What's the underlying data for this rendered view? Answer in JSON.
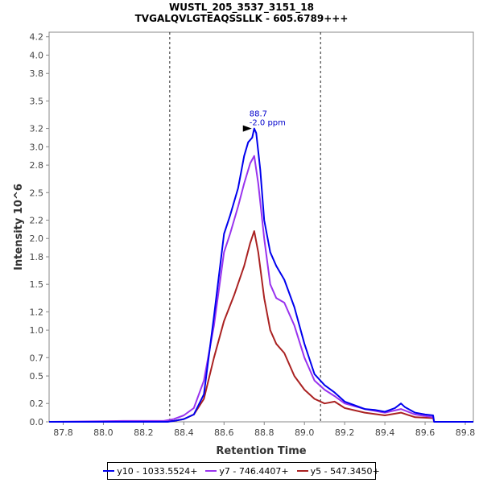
{
  "header": {
    "title": "WUSTL_205_3537_3151_18",
    "subtitle": "TVGALQVLGTEAQSSLLK - 605.6789+++"
  },
  "chart_data": {
    "type": "line",
    "xlabel": "Retention Time",
    "ylabel": "Intensity 10^6",
    "xlim": [
      87.73,
      89.84
    ],
    "ylim": [
      0,
      4.25
    ],
    "x_ticks": [
      {
        "value": 87.8,
        "label": "87.8"
      },
      {
        "value": 88.0,
        "label": "88.0"
      },
      {
        "value": 88.2,
        "label": "88.2"
      },
      {
        "value": 88.4,
        "label": "88.4"
      },
      {
        "value": 88.6,
        "label": "88.6"
      },
      {
        "value": 88.8,
        "label": "88.8"
      },
      {
        "value": 89.0,
        "label": "89.0"
      },
      {
        "value": 89.2,
        "label": "89.2"
      },
      {
        "value": 89.4,
        "label": "89.4"
      },
      {
        "value": 89.6,
        "label": "89.6"
      },
      {
        "value": 89.8,
        "label": "89.8"
      }
    ],
    "y_ticks": [
      {
        "value": 0.0,
        "label": "0.0"
      },
      {
        "value": 0.2,
        "label": "0.2"
      },
      {
        "value": 0.5,
        "label": "0.5"
      },
      {
        "value": 0.7,
        "label": "0.7"
      },
      {
        "value": 1.0,
        "label": "1.0"
      },
      {
        "value": 1.2,
        "label": "1.2"
      },
      {
        "value": 1.5,
        "label": "1.5"
      },
      {
        "value": 1.8,
        "label": "1.8"
      },
      {
        "value": 2.0,
        "label": "2.0"
      },
      {
        "value": 2.2,
        "label": "2.2"
      },
      {
        "value": 2.5,
        "label": "2.5"
      },
      {
        "value": 2.8,
        "label": "2.8"
      },
      {
        "value": 3.0,
        "label": "3.0"
      },
      {
        "value": 3.2,
        "label": "3.2"
      },
      {
        "value": 3.5,
        "label": "3.5"
      },
      {
        "value": 3.8,
        "label": "3.8"
      },
      {
        "value": 4.0,
        "label": "4.0"
      },
      {
        "value": 4.2,
        "label": "4.2"
      }
    ],
    "boundaries": [
      88.33,
      89.08
    ],
    "annotation": {
      "x": 88.75,
      "y": 3.2,
      "line1": "88.7",
      "line2": "-2.0 ppm",
      "color": "#0000cc"
    },
    "legend_position": "bottom",
    "series": [
      {
        "name": "y10 - 1033.5524+",
        "color": "#0000ee",
        "x": [
          87.73,
          88.0,
          88.32,
          88.35,
          88.4,
          88.45,
          88.5,
          88.55,
          88.6,
          88.63,
          88.67,
          88.7,
          88.72,
          88.74,
          88.75,
          88.76,
          88.78,
          88.8,
          88.83,
          88.86,
          88.9,
          88.95,
          89.0,
          89.05,
          89.1,
          89.15,
          89.2,
          89.25,
          89.3,
          89.35,
          89.4,
          89.45,
          89.48,
          89.5,
          89.55,
          89.6,
          89.64,
          89.645,
          89.84
        ],
        "y": [
          0.0,
          0.0,
          0.0,
          0.01,
          0.03,
          0.08,
          0.3,
          1.15,
          2.05,
          2.25,
          2.55,
          2.9,
          3.05,
          3.1,
          3.2,
          3.15,
          2.75,
          2.2,
          1.85,
          1.7,
          1.55,
          1.25,
          0.85,
          0.52,
          0.4,
          0.32,
          0.22,
          0.18,
          0.14,
          0.13,
          0.11,
          0.15,
          0.2,
          0.16,
          0.1,
          0.08,
          0.07,
          0.0,
          0.0
        ]
      },
      {
        "name": "y7 - 746.4407+",
        "color": "#9933ee",
        "x": [
          87.73,
          88.1,
          88.3,
          88.35,
          88.4,
          88.45,
          88.5,
          88.55,
          88.6,
          88.63,
          88.67,
          88.7,
          88.73,
          88.75,
          88.77,
          88.8,
          88.83,
          88.86,
          88.9,
          88.95,
          89.0,
          89.05,
          89.1,
          89.15,
          89.2,
          89.3,
          89.4,
          89.48,
          89.55,
          89.64,
          89.645,
          89.84
        ],
        "y": [
          0.0,
          0.01,
          0.01,
          0.03,
          0.07,
          0.15,
          0.45,
          1.05,
          1.85,
          2.05,
          2.35,
          2.6,
          2.82,
          2.9,
          2.6,
          2.0,
          1.5,
          1.35,
          1.3,
          1.05,
          0.7,
          0.45,
          0.35,
          0.28,
          0.2,
          0.14,
          0.1,
          0.14,
          0.08,
          0.05,
          0.0,
          0.0
        ]
      },
      {
        "name": "y5 - 547.3450+",
        "color": "#aa2222",
        "x": [
          87.73,
          88.1,
          88.35,
          88.4,
          88.45,
          88.5,
          88.55,
          88.6,
          88.65,
          88.7,
          88.73,
          88.75,
          88.77,
          88.8,
          88.83,
          88.86,
          88.9,
          88.95,
          89.0,
          89.05,
          89.1,
          89.15,
          89.2,
          89.3,
          89.4,
          89.48,
          89.55,
          89.64,
          89.645,
          89.84
        ],
        "y": [
          0.0,
          0.0,
          0.01,
          0.03,
          0.08,
          0.25,
          0.7,
          1.1,
          1.38,
          1.7,
          1.95,
          2.08,
          1.85,
          1.35,
          1.0,
          0.85,
          0.75,
          0.5,
          0.35,
          0.25,
          0.2,
          0.22,
          0.15,
          0.1,
          0.07,
          0.1,
          0.05,
          0.04,
          0.0,
          0.0
        ]
      }
    ]
  }
}
